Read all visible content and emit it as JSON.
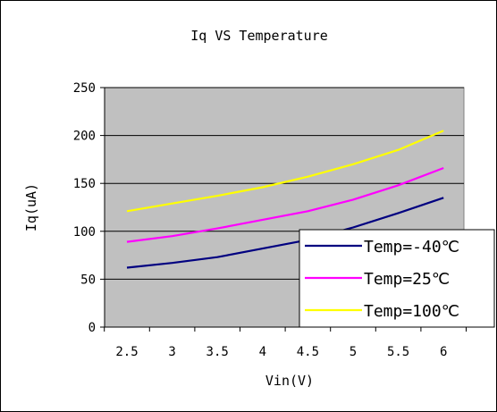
{
  "chart_data": {
    "type": "line",
    "title": "Iq VS Temperature",
    "xlabel": "Vin(V)",
    "ylabel": "Iq(uA)",
    "x_ticks": [
      "2.5",
      "3",
      "3.5",
      "4",
      "4.5",
      "5",
      "5.5",
      "6"
    ],
    "x": [
      2.5,
      3,
      3.5,
      4,
      4.5,
      5,
      5.5,
      6
    ],
    "y_ticks": [
      "0",
      "50",
      "100",
      "150",
      "200",
      "250"
    ],
    "ylim": [
      0,
      250
    ],
    "grid": true,
    "plot_background": "#c0c0c0",
    "legend_position": "bottom-right",
    "series": [
      {
        "name": "Temp=-40℃",
        "color": "#000080",
        "values": [
          62,
          67,
          73,
          82,
          91,
          104,
          119,
          135
        ]
      },
      {
        "name": "Temp=25℃",
        "color": "#ff00ff",
        "values": [
          89,
          95,
          103,
          112,
          121,
          133,
          148,
          166
        ]
      },
      {
        "name": "Temp=100℃",
        "color": "#ffff00",
        "values": [
          121,
          129,
          137,
          146,
          157,
          170,
          185,
          205
        ]
      }
    ]
  }
}
